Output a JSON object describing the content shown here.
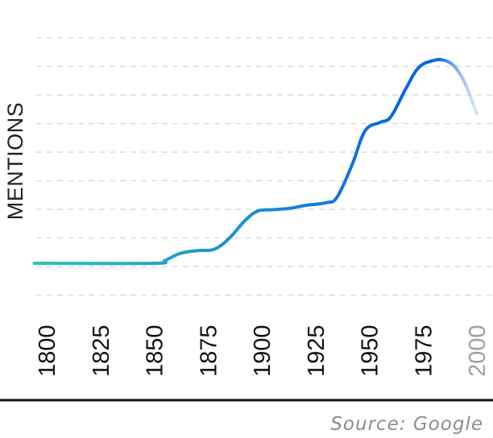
{
  "chart_data": {
    "type": "line",
    "title": "",
    "xlabel": "",
    "ylabel": "MENTIONS",
    "x_ticks": [
      "1800",
      "1825",
      "1850",
      "1875",
      "1900",
      "1925",
      "1950",
      "1975",
      "2000"
    ],
    "xlim": [
      1800,
      2000
    ],
    "ylim": [
      0,
      9
    ],
    "grid": true,
    "series": [
      {
        "x": [
          1800,
          1850,
          1855,
          1862,
          1870,
          1878,
          1885,
          1892,
          1898,
          1905,
          1913,
          1920,
          1930,
          1935,
          1942,
          1948,
          1955,
          1960,
          1967,
          1973,
          1980,
          1985,
          1990,
          1995,
          2000
        ],
        "values": [
          1.0,
          1.0,
          1.1,
          1.35,
          1.45,
          1.5,
          1.9,
          2.5,
          2.85,
          2.9,
          2.95,
          3.05,
          3.15,
          3.35,
          4.5,
          5.7,
          6.0,
          6.2,
          7.2,
          7.95,
          8.2,
          8.2,
          7.95,
          7.3,
          6.3
        ]
      }
    ],
    "line_colors": [
      "#2ec4b6",
      "#0a64e6"
    ],
    "faded_color": "#c8d8f5",
    "faded_tick_color": "#a0a0a0"
  },
  "source_label": "Source: Google"
}
